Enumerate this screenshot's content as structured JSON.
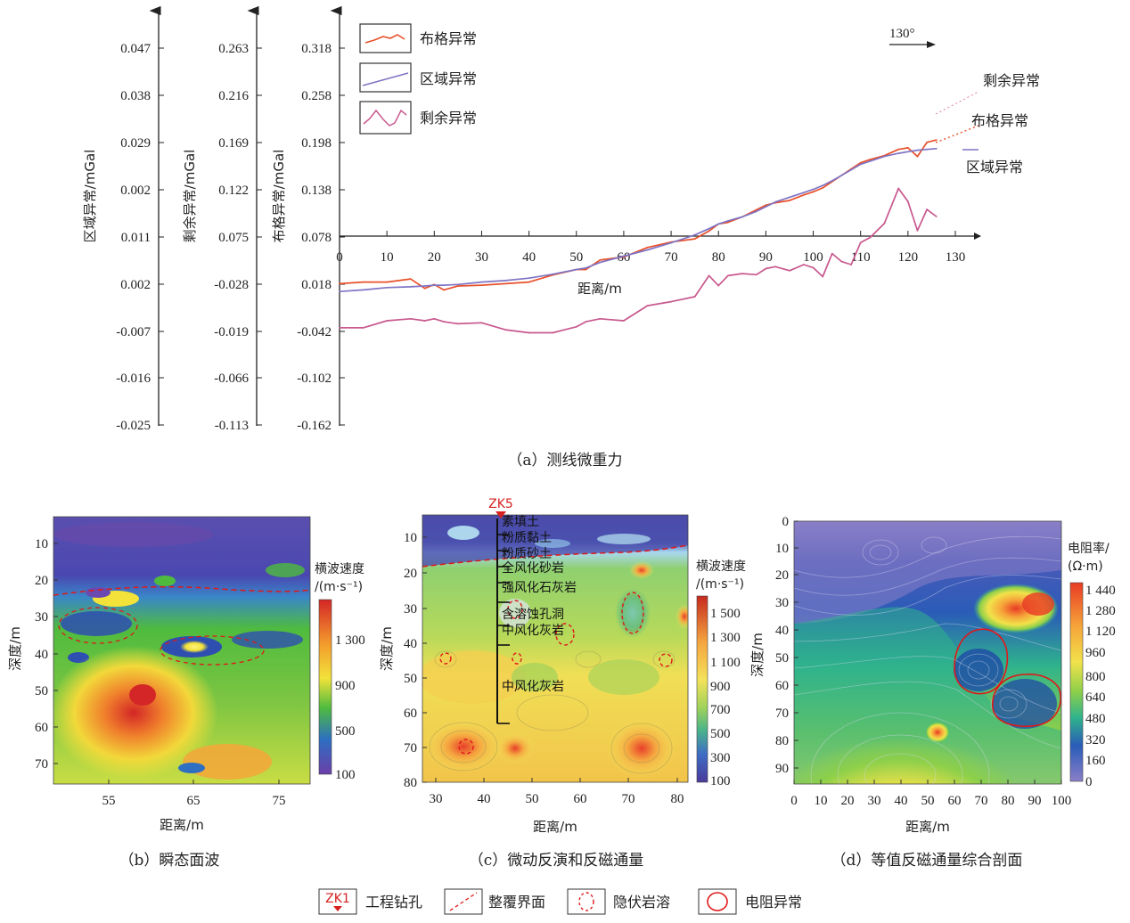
{
  "colors": {
    "bouguer": "#e8502a",
    "regional": "#7f74c4",
    "residual": "#c8588e",
    "anomaly_red": "#e01818",
    "drill": "#d62020"
  },
  "panel_a": {
    "caption": "（a）测线微重力",
    "direction": "130°",
    "x_label": "距离/m",
    "x_ticks": [
      "0",
      "10",
      "20",
      "30",
      "40",
      "50",
      "60",
      "70",
      "80",
      "90",
      "100",
      "110",
      "120",
      "130"
    ],
    "axis1_label": "区域异常/mGal",
    "axis1_ticks": [
      "0.047",
      "0.038",
      "0.029",
      "0.002",
      "0.011",
      "0.002",
      "-0.007",
      "-0.016",
      "-0.025"
    ],
    "axis2_label": "剩余异常/mGal",
    "axis2_ticks": [
      "0.263",
      "0.216",
      "0.169",
      "0.122",
      "0.075",
      "-0.028",
      "-0.019",
      "-0.066",
      "-0.113"
    ],
    "axis3_label": "布格异常/mGal",
    "axis3_ticks": [
      "0.318",
      "0.258",
      "0.198",
      "0.138",
      "0.078",
      "0.018",
      "-0.042",
      "-0.102",
      "-0.162"
    ],
    "legend": [
      "布格异常",
      "区域异常",
      "剩余异常"
    ],
    "end_labels": [
      "剩余异常",
      "布格异常",
      "区域异常"
    ]
  },
  "chart_data": {
    "type": "line",
    "x": [
      0,
      5,
      10,
      15,
      18,
      20,
      22,
      25,
      30,
      35,
      40,
      45,
      50,
      52,
      55,
      60,
      65,
      70,
      75,
      78,
      80,
      82,
      85,
      88,
      90,
      92,
      95,
      98,
      100,
      102,
      104,
      106,
      108,
      110,
      112,
      115,
      118,
      120,
      122,
      124,
      126
    ],
    "series": [
      {
        "name": "布格异常",
        "values": [
          0.018,
          0.02,
          0.02,
          0.024,
          0.012,
          0.017,
          0.01,
          0.015,
          0.016,
          0.018,
          0.02,
          0.029,
          0.036,
          0.036,
          0.048,
          0.052,
          0.064,
          0.071,
          0.075,
          0.085,
          0.094,
          0.096,
          0.103,
          0.112,
          0.118,
          0.121,
          0.124,
          0.131,
          0.135,
          0.14,
          0.148,
          0.156,
          0.164,
          0.172,
          0.176,
          0.181,
          0.189,
          0.191,
          0.18,
          0.198,
          0.201
        ]
      },
      {
        "name": "区域异常",
        "values": [
          0.008,
          0.01,
          0.013,
          0.014,
          0.015,
          0.016,
          0.016,
          0.017,
          0.02,
          0.022,
          0.025,
          0.03,
          0.036,
          0.038,
          0.045,
          0.053,
          0.061,
          0.07,
          0.08,
          0.088,
          0.094,
          0.098,
          0.103,
          0.11,
          0.116,
          0.122,
          0.128,
          0.134,
          0.138,
          0.143,
          0.149,
          0.156,
          0.163,
          0.17,
          0.174,
          0.18,
          0.184,
          0.186,
          0.188,
          0.189,
          0.19
        ]
      },
      {
        "name": "剩余异常",
        "values": [
          -0.016,
          -0.016,
          -0.009,
          -0.007,
          -0.009,
          -0.007,
          -0.01,
          -0.012,
          -0.011,
          -0.018,
          -0.021,
          -0.021,
          -0.015,
          -0.01,
          -0.007,
          -0.009,
          0.006,
          0.01,
          0.015,
          0.036,
          0.026,
          0.036,
          0.038,
          0.037,
          0.043,
          0.045,
          0.041,
          0.047,
          0.044,
          0.035,
          0.058,
          0.05,
          0.047,
          0.069,
          0.074,
          0.088,
          0.123,
          0.11,
          0.081,
          0.102,
          0.095
        ]
      }
    ],
    "xlabel": "距离/m",
    "xlim": [
      0,
      130
    ]
  },
  "panel_b": {
    "caption": "（b）瞬态面波",
    "x_label": "距离/m",
    "y_label": "深度/m",
    "x_ticks": [
      "55",
      "65",
      "75"
    ],
    "y_ticks": [
      "10",
      "20",
      "30",
      "40",
      "50",
      "60",
      "70"
    ],
    "cb_title1": "横波速度",
    "cb_title2": "/(m·s⁻¹)",
    "cb_ticks": [
      "1 300",
      "900",
      "500",
      "100"
    ]
  },
  "panel_c": {
    "caption": "（c）微动反演和反磁通量",
    "x_label": "距离/m",
    "y_label": "深度/m",
    "x_ticks": [
      "30",
      "40",
      "50",
      "60",
      "70",
      "80"
    ],
    "y_ticks": [
      "10",
      "20",
      "30",
      "40",
      "50",
      "60",
      "70",
      "80"
    ],
    "cb_title1": "横波速度",
    "cb_title2": "/(m·s⁻¹)",
    "cb_ticks": [
      "1 500",
      "1 300",
      "1 100",
      "900",
      "700",
      "500",
      "300",
      "100"
    ],
    "drill_label": "ZK5",
    "strata": [
      "素填土",
      "粉质黏土",
      "粉质砂土",
      "全风化砂岩",
      "强风化石灰岩",
      "含溶蚀孔洞",
      "中风化灰岩",
      "中风化灰岩"
    ]
  },
  "panel_d": {
    "caption": "（d）等值反磁通量综合剖面",
    "x_label": "距离/m",
    "y_label": "深度/m",
    "x_ticks": [
      "0",
      "10",
      "20",
      "30",
      "40",
      "50",
      "60",
      "70",
      "80",
      "90",
      "100"
    ],
    "y_ticks": [
      "0",
      "10",
      "20",
      "30",
      "40",
      "50",
      "60",
      "70",
      "80",
      "90"
    ],
    "cb_title1": "电阻率/",
    "cb_title2": "(Ω·m)",
    "cb_ticks": [
      "1 440",
      "1 280",
      "1 120",
      "960",
      "800",
      "640",
      "480",
      "320",
      "160",
      "0"
    ]
  },
  "legend_bottom": {
    "drill_icon": "ZK1",
    "items": [
      "工程钻孔",
      "整覆界面",
      "隐伏岩溶",
      "电阻异常"
    ]
  }
}
